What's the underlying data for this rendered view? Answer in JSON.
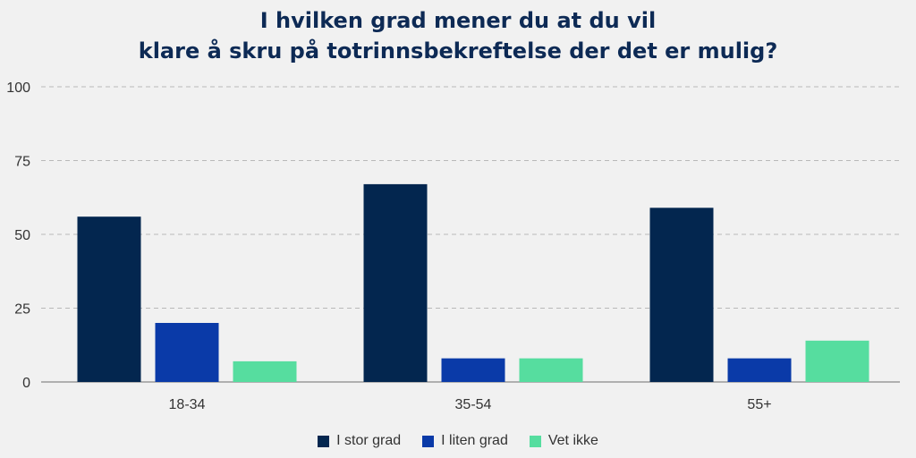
{
  "chart_data": {
    "type": "bar",
    "title_lines": [
      "I hvilken grad mener du at du vil",
      "klare å skru på totrinnsbekreftelse der det er mulig?"
    ],
    "categories": [
      "18-34",
      "35-54",
      "55+"
    ],
    "series": [
      {
        "name": "I stor grad",
        "color": "#03264f",
        "values": [
          56,
          67,
          59
        ]
      },
      {
        "name": "I liten grad",
        "color": "#0a3aa8",
        "values": [
          20,
          8,
          8
        ]
      },
      {
        "name": "Vet ikke",
        "color": "#56dd9f",
        "values": [
          7,
          8,
          14
        ]
      }
    ],
    "yticks": [
      0,
      25,
      50,
      75,
      100
    ],
    "ylim": [
      0,
      100
    ],
    "grid": true,
    "legend_position": "bottom"
  }
}
